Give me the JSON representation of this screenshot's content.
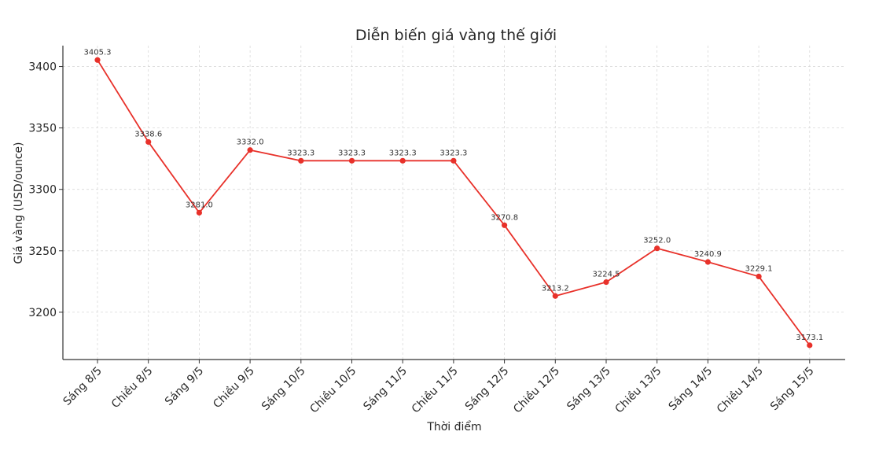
{
  "chart_data": {
    "type": "line",
    "title": "Diễn biến giá vàng thế giới",
    "xlabel": "Thời điểm",
    "ylabel": "Giá vàng (USD/ounce)",
    "categories": [
      "Sáng 8/5",
      "Chiều 8/5",
      "Sáng 9/5",
      "Chiều 9/5",
      "Sáng 10/5",
      "Chiều 10/5",
      "Sáng 11/5",
      "Chiều 11/5",
      "Sáng 12/5",
      "Chiều 12/5",
      "Sáng 13/5",
      "Chiều 13/5",
      "Sáng 14/5",
      "Chiều 14/5",
      "Sáng 15/5"
    ],
    "series": [
      {
        "values": [
          3405.3,
          3338.6,
          3281.0,
          3332.0,
          3323.3,
          3323.3,
          3323.3,
          3323.3,
          3270.8,
          3213.2,
          3224.5,
          3252.0,
          3240.9,
          3229.1,
          3173.1
        ],
        "data_labels": [
          "3405.3",
          "3338.6",
          "3281.0",
          "3332.0",
          "3323.3",
          "3323.3",
          "3323.3",
          "3323.3",
          "3270.8",
          "3213.2",
          "3224.5",
          "3252.0",
          "3240.9",
          "3229.1",
          "3173.1"
        ],
        "color": "#e8312a",
        "marker": "circle"
      }
    ],
    "yticks": [
      3200,
      3250,
      3300,
      3350,
      3400
    ],
    "ylim": [
      3161.5,
      3417
    ],
    "grid": true,
    "legend": "none"
  }
}
